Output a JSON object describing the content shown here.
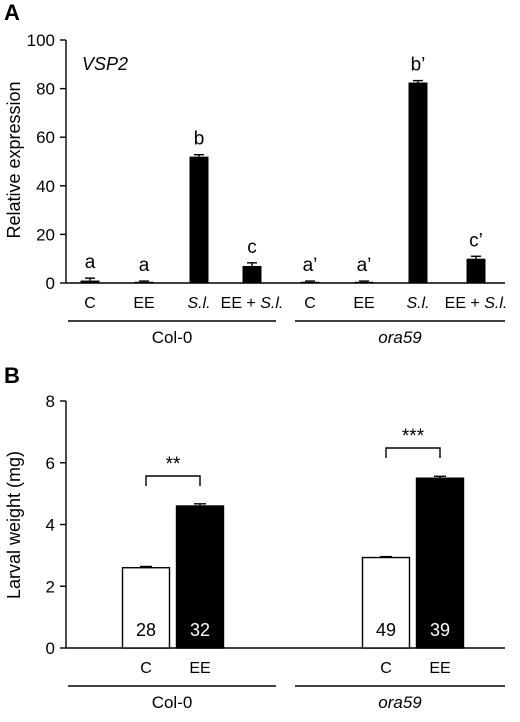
{
  "chart_data": [
    {
      "panel": "A",
      "type": "bar",
      "gene": "VSP2",
      "ylabel": "Relative expression",
      "ylim": [
        0,
        100
      ],
      "yticks": [
        0,
        20,
        40,
        60,
        80,
        100
      ],
      "categories": [
        "C",
        "EE",
        "S.l.",
        "EE + S.l.",
        "C",
        "EE",
        "S.l.",
        "EE + S.l."
      ],
      "italic_categories": [
        2,
        3,
        6,
        7
      ],
      "values": [
        1,
        0.5,
        52,
        7,
        0.5,
        0.5,
        82.5,
        10
      ],
      "errors": [
        1,
        0.3,
        0.8,
        1.3,
        0.3,
        0.3,
        0.8,
        1.0
      ],
      "letters": [
        "a",
        "a",
        "b",
        "c",
        "a’",
        "a’",
        "b’",
        "c’"
      ],
      "groups": [
        {
          "name": "Col-0",
          "italic": false
        },
        {
          "name": "ora59",
          "italic": true
        }
      ]
    },
    {
      "panel": "B",
      "type": "bar",
      "ylabel": "Larval weight (mg)",
      "ylim": [
        0,
        8
      ],
      "yticks": [
        0,
        2,
        4,
        6,
        8
      ],
      "categories": [
        "C",
        "EE",
        "C",
        "EE"
      ],
      "values": [
        2.6,
        4.6,
        2.93,
        5.5
      ],
      "errors": [
        0.04,
        0.07,
        0.03,
        0.06
      ],
      "fills": [
        "#ffffff",
        "#000000",
        "#ffffff",
        "#000000"
      ],
      "n_labels": [
        "28",
        "32",
        "49",
        "39"
      ],
      "significance": [
        "**",
        "***"
      ],
      "groups": [
        {
          "name": "Col-0",
          "italic": false
        },
        {
          "name": "ora59",
          "italic": true
        }
      ]
    }
  ]
}
